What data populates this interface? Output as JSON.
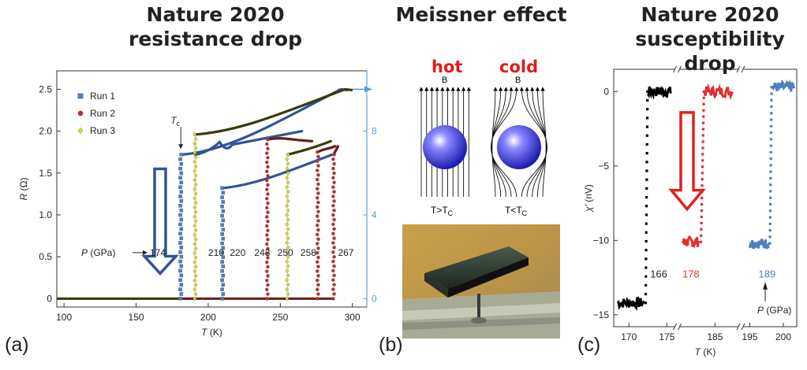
{
  "titles": {
    "a_line1": "Nature 2020",
    "a_line2": "resistance drop",
    "b_line1": "Meissner effect",
    "c_line1": "Nature 2020",
    "c_line2": "susceptibility drop"
  },
  "panel_labels": {
    "a": "(a)",
    "b": "(b)",
    "c": "(c)"
  },
  "meissner": {
    "hot_label": "hot",
    "cold_label": "cold",
    "field_label_hot": "B",
    "field_label_cold": "B",
    "hot_caption": "T>T",
    "cold_caption": "T<T",
    "caption_sub": "C",
    "sphere_color": "#3b3bd6",
    "photo_bg": "#c8a24e"
  },
  "chart_data": [
    {
      "type": "scatter",
      "panel": "a",
      "xlabel": "T",
      "xunit": " (K)",
      "ylabel": "R",
      "yunit": " (Ω)",
      "xlim": [
        95,
        310
      ],
      "ylim": [
        -0.1,
        2.72
      ],
      "x_ticks": [
        100,
        150,
        200,
        250,
        300
      ],
      "y_ticks": [
        0,
        0.5,
        1.0,
        1.5,
        2.0,
        2.5
      ],
      "y_tick_labels": [
        "0",
        "0.5",
        "1.0",
        "1.5",
        "2.0",
        "2.5"
      ],
      "right_axis_ticks": [
        {
          "value": 0,
          "label": "0"
        },
        {
          "value": 1.0,
          "label": "4"
        },
        {
          "value": 2.0,
          "label": "8"
        }
      ],
      "right_axis_color": "#5aa0d8",
      "legend": [
        {
          "name": "Run 1",
          "color": "#4f7fc0",
          "marker": "square"
        },
        {
          "name": "Run 2",
          "color": "#b83232",
          "marker": "circle"
        },
        {
          "name": "Run 3",
          "color": "#e3e023",
          "marker": "diamond"
        }
      ],
      "pressure_prefix": "P",
      "pressure_unit": " (GPa)",
      "pressure_labels": [
        {
          "label": "174",
          "x": 175,
          "y": 0.55
        },
        {
          "label": "210",
          "x": 200,
          "y": 0.55
        },
        {
          "label": "220",
          "x": 215,
          "y": 0.55
        },
        {
          "label": "243",
          "x": 232,
          "y": 0.55
        },
        {
          "label": "250",
          "x": 248,
          "y": 0.55
        },
        {
          "label": "258",
          "x": 264,
          "y": 0.55
        },
        {
          "label": "267",
          "x": 290,
          "y": 0.55
        }
      ],
      "tc_label": "T",
      "tc_sub": "c",
      "tc_point": {
        "x": 181,
        "y": 1.75
      },
      "curves": [
        {
          "color": "#2f5597",
          "tc": 181,
          "top": 1.72,
          "end_x": 292,
          "end_y": 2.5,
          "bump": false
        },
        {
          "color": "#2f5597",
          "tc": 210,
          "top": 1.32,
          "end_x": 286,
          "end_y": 1.72,
          "bump": false
        },
        {
          "color": "#3a3a0c",
          "tc": 191,
          "top": 1.96,
          "end_x": 295,
          "end_y": 2.5,
          "bump": false
        },
        {
          "color": "#2f5597",
          "tc": 191,
          "top": 1.72,
          "end_x": 265,
          "end_y": 2.0,
          "bump": true
        },
        {
          "color": "#6b1a1a",
          "tc": 241,
          "top": 1.9,
          "end_x": 272,
          "end_y": 1.88,
          "bump": false
        },
        {
          "color": "#3a3a0c",
          "tc": 255,
          "top": 1.72,
          "end_x": 285,
          "end_y": 1.88,
          "bump": false
        },
        {
          "color": "#6b1a1a",
          "tc": 276,
          "top": 1.75,
          "end_x": 288,
          "end_y": 1.82,
          "bump": false
        },
        {
          "color": "#6b1a1a",
          "tc": 287,
          "top": 1.72,
          "end_x": 290,
          "end_y": 1.82,
          "bump": false
        }
      ],
      "transitions": [
        {
          "x": 181,
          "top": 1.72,
          "color": "#4f7fc0",
          "marker": "square"
        },
        {
          "x": 191,
          "top": 1.96,
          "color": "#e3e023",
          "marker": "diamond"
        },
        {
          "x": 210,
          "top": 1.32,
          "color": "#4f7fc0",
          "marker": "square"
        },
        {
          "x": 241,
          "top": 1.9,
          "color": "#b83232",
          "marker": "circle"
        },
        {
          "x": 255,
          "top": 1.72,
          "color": "#e3e023",
          "marker": "diamond"
        },
        {
          "x": 276,
          "top": 1.75,
          "color": "#b83232",
          "marker": "circle"
        },
        {
          "x": 287,
          "top": 1.72,
          "color": "#b83232",
          "marker": "circle"
        }
      ],
      "baseline": [
        {
          "color": "#2f5597",
          "from": 95,
          "to": 181
        },
        {
          "color": "#3a3a0c",
          "from": 95,
          "to": 191
        },
        {
          "color": "#6b1a1a",
          "from": 183,
          "to": 287
        }
      ]
    },
    {
      "type": "scatter",
      "panel": "c",
      "xlabel": "T",
      "xunit": " (K)",
      "ylabel": "χ′",
      "yunit": " (nV)",
      "ylim": [
        -15.8,
        1.5
      ],
      "y_ticks": [
        0,
        -5,
        -10,
        -15
      ],
      "y_tick_labels": [
        "0",
        "−5",
        "−10",
        "−15"
      ],
      "broken_axis": true,
      "x_segments": [
        {
          "from": 168,
          "to": 176,
          "ticks": [
            170,
            175
          ]
        },
        {
          "from": 182,
          "to": 187,
          "ticks": [
            185
          ]
        },
        {
          "from": 194,
          "to": 202,
          "ticks": [
            195,
            200
          ]
        }
      ],
      "arrow_annotation": {
        "label": "P",
        "unit": " (GPa)"
      },
      "series": [
        {
          "name": "166",
          "color": "#000000",
          "label_color": "#222222",
          "t_low": 168.5,
          "t_rise": 172.2,
          "t_high": 175.5,
          "low": -14.2,
          "high": 0.0
        },
        {
          "name": "178",
          "color": "#e03030",
          "label_color": "#e03030",
          "t_low": 182.2,
          "t_rise": 183.8,
          "t_high": 186.5,
          "low": -10.1,
          "high": 0.0
        },
        {
          "name": "189",
          "color": "#4f7fc0",
          "label_color": "#4f7fc0",
          "t_low": 195.0,
          "t_rise": 198.0,
          "t_high": 201.6,
          "low": -10.2,
          "high": 0.3
        }
      ]
    }
  ]
}
